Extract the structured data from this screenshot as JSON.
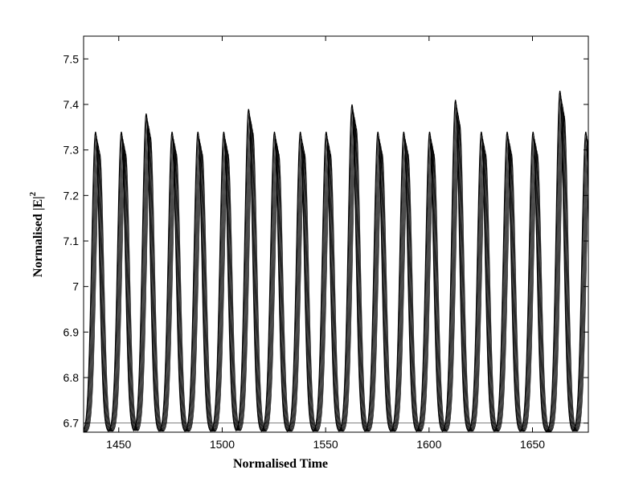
{
  "chart_data": {
    "type": "line",
    "title": "",
    "xlabel": "Normalised Time",
    "ylabel": "Normalised  |E|",
    "ylabel_superscript": "2",
    "xlim": [
      1433,
      1677
    ],
    "ylim": [
      6.68,
      7.55
    ],
    "x_ticks": [
      "1450",
      "1500",
      "1550",
      "1600",
      "1650"
    ],
    "y_ticks": [
      "6.7",
      "6.8",
      "6.9",
      "7",
      "7.1",
      "7.2",
      "7.3",
      "7.4",
      "7.5"
    ],
    "grid": false,
    "legend": "none",
    "line_color": "#000000",
    "series": [
      {
        "peaks_x": [
          1440.0,
          1452.5,
          1464.5,
          1477.0,
          1489.5,
          1502.0,
          1514.0,
          1526.5,
          1539.0,
          1551.5,
          1564.0,
          1576.5,
          1589.0,
          1601.5,
          1614.0,
          1626.5,
          1639.0,
          1651.5,
          1664.5,
          1677.0
        ],
        "peaks_y": [
          7.34,
          7.34,
          7.38,
          7.34,
          7.34,
          7.34,
          7.39,
          7.34,
          7.34,
          7.34,
          7.4,
          7.34,
          7.34,
          7.34,
          7.41,
          7.34,
          7.34,
          7.34,
          7.43,
          7.34
        ],
        "baseline_y": 6.7
      }
    ]
  }
}
